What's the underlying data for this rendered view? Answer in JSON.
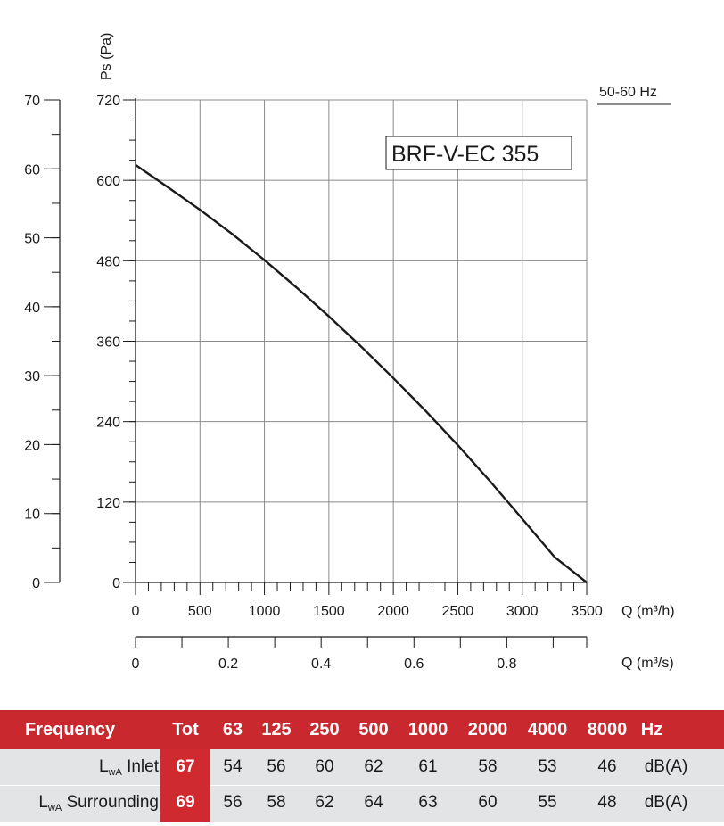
{
  "chart_data": {
    "type": "line",
    "model_label": "BRF-V-EC 355",
    "frequency_label": "50-60 Hz",
    "y_axis_title": "Ps (Pa)",
    "x_axis_title_m3h": "Q (m³/h)",
    "x_axis_title_m3s": "Q (m³/s)",
    "ylim_pa": [
      0,
      720
    ],
    "ylim_left": [
      0,
      70
    ],
    "xlim_m3h": [
      0,
      3500
    ],
    "xlim_m3s": [
      0,
      0.97222
    ],
    "y_ticks_pa": [
      "0",
      "120",
      "240",
      "360",
      "480",
      "600",
      "720"
    ],
    "y_ticks_left": [
      "0",
      "10",
      "20",
      "30",
      "40",
      "50",
      "60",
      "70"
    ],
    "x_ticks_m3h": [
      "0",
      "500",
      "1000",
      "1500",
      "2000",
      "2500",
      "3000",
      "3500"
    ],
    "x_ticks_m3s": [
      "0",
      "0.2",
      "0.4",
      "0.6",
      "0.8"
    ],
    "grid": true,
    "series": [
      {
        "x": [
          0,
          250,
          500,
          750,
          1000,
          1250,
          1500,
          1750,
          2000,
          2250,
          2500,
          2750,
          3000,
          3250,
          3500
        ],
        "y": [
          623,
          590,
          556,
          520,
          481,
          440,
          397,
          352,
          305,
          256,
          205,
          151,
          95,
          38,
          0
        ]
      }
    ]
  },
  "sound_table": {
    "header": {
      "frequency": "Frequency",
      "tot": "Tot",
      "bands": [
        "63",
        "125",
        "250",
        "500",
        "1000",
        "2000",
        "4000",
        "8000"
      ],
      "unit": "Hz"
    },
    "rows": [
      {
        "label_main": "L",
        "label_sub": "wA",
        "label_rest": " Inlet",
        "tot": "67",
        "values": [
          "54",
          "56",
          "60",
          "62",
          "61",
          "58",
          "53",
          "46"
        ],
        "unit": "dB(A)"
      },
      {
        "label_main": "L",
        "label_sub": "wA",
        "label_rest": " Surrounding",
        "tot": "69",
        "values": [
          "56",
          "58",
          "62",
          "64",
          "63",
          "60",
          "55",
          "48"
        ],
        "unit": "dB(A)"
      }
    ]
  },
  "colors": {
    "header_red": "#c8282e",
    "row_grey": "#e3e4e6",
    "curve": "#1a1a1a",
    "grid": "#8a8a8a"
  }
}
